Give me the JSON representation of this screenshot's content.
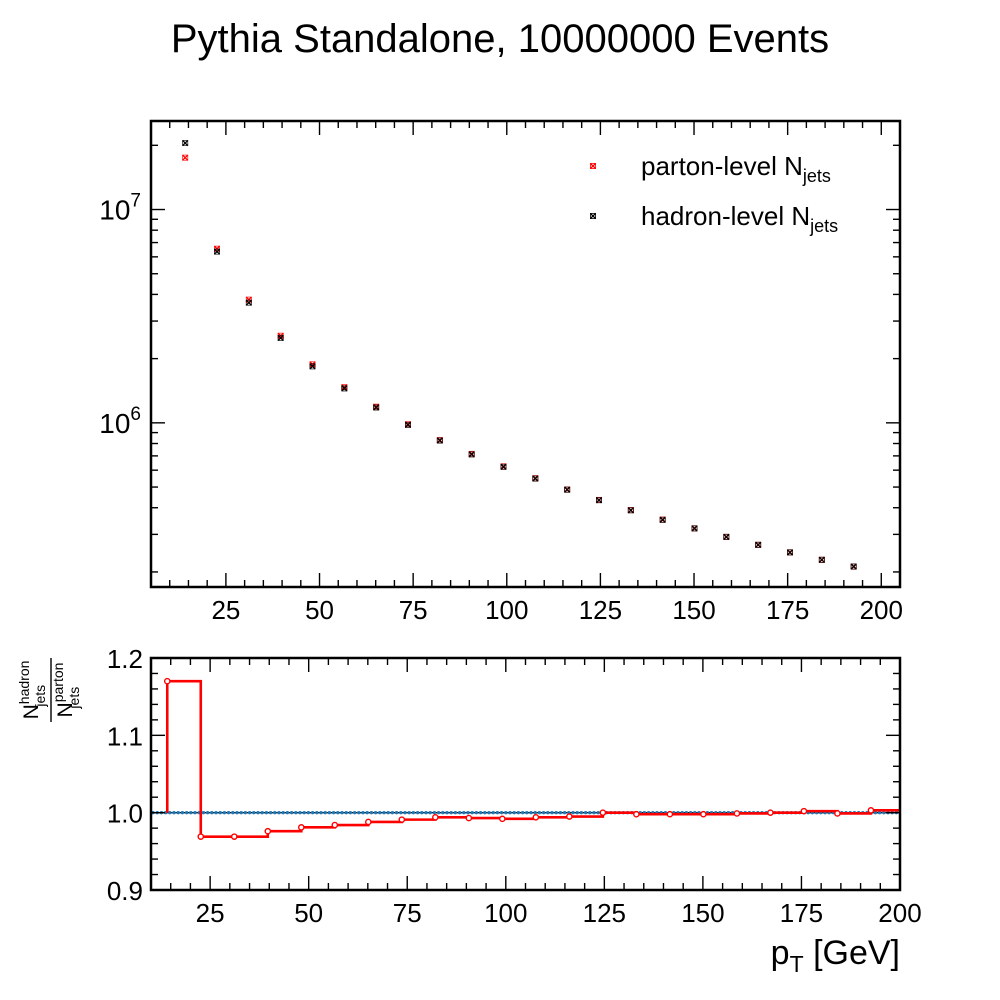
{
  "figure_title": "Pythia Standalone, 10000000 Events",
  "chart_data": [
    {
      "type": "scatter",
      "panel": "main",
      "yscale": "log",
      "xlim": [
        5,
        205
      ],
      "ylim": [
        170000,
        26000000
      ],
      "x_ticks": [
        "25",
        "50",
        "75",
        "100",
        "125",
        "150",
        "175",
        "200"
      ],
      "y_ticks": [
        {
          "base": "10",
          "exp": "6",
          "value": 1000000
        },
        {
          "base": "10",
          "exp": "7",
          "value": 10000000
        }
      ],
      "legend_position": "top-right",
      "x": [
        14.125,
        22.625,
        31.125,
        39.625,
        48.125,
        56.625,
        65.125,
        73.625,
        82.125,
        90.625,
        99.125,
        107.625,
        116.125,
        124.625,
        133.125,
        141.625,
        150.125,
        158.625,
        167.125,
        175.625,
        184.125,
        192.625
      ],
      "series": [
        {
          "name": "parton-level",
          "name_sub": "jets",
          "name_base": "N",
          "color": "#ff0000",
          "values": [
            17500000,
            6550000,
            3780000,
            2560000,
            1880000,
            1470000,
            1190000,
            985000,
            830000,
            715000,
            625000,
            550000,
            487000,
            435000,
            390000,
            352000,
            320000,
            292000,
            268000,
            247000,
            228000,
            212000
          ]
        },
        {
          "name": "hadron-level",
          "name_sub": "jets",
          "name_base": "N",
          "color": "#000000",
          "values": [
            20500000,
            6350000,
            3660000,
            2500000,
            1840000,
            1450000,
            1180000,
            978000,
            826000,
            711000,
            622000,
            548000,
            486000,
            434000,
            389000,
            351000,
            320000,
            292000,
            268000,
            247000,
            228000,
            212000
          ]
        }
      ]
    },
    {
      "type": "line",
      "panel": "ratio",
      "step": true,
      "xlim": [
        10,
        200
      ],
      "ylim": [
        0.9,
        1.2
      ],
      "x_ticks": [
        "25",
        "50",
        "75",
        "100",
        "125",
        "150",
        "175",
        "200"
      ],
      "y_ticks": [
        "0.9",
        "1.0",
        "1.1",
        "1.2"
      ],
      "xlabel_base": "p",
      "xlabel_sub": "T",
      "xlabel_unit": "[GeV]",
      "ylabel": {
        "num_base": "N",
        "num_sub": "jets",
        "num_sup": "hadron",
        "den_base": "N",
        "den_sub": "jets",
        "den_sup": "parton"
      },
      "reference_line": 1.0,
      "reference_color": "#1f77b4",
      "color": "#ff0000",
      "edges": [
        14.125,
        22.625,
        31.125,
        39.625,
        48.125,
        56.625,
        65.125,
        73.625,
        82.125,
        90.625,
        99.125,
        107.625,
        116.125,
        124.625,
        133.125,
        141.625,
        150.125,
        158.625,
        167.125,
        175.625,
        184.125,
        192.625,
        201.125
      ],
      "points_x": [
        14.125,
        22.625,
        31.125,
        39.625,
        48.125,
        56.625,
        65.125,
        73.625,
        82.125,
        90.625,
        99.125,
        107.625,
        116.125,
        124.625,
        133.125,
        141.625,
        150.125,
        158.625,
        167.125,
        175.625,
        184.125,
        192.625
      ],
      "values": [
        1.17,
        0.969,
        0.969,
        0.976,
        0.981,
        0.984,
        0.988,
        0.991,
        0.994,
        0.993,
        0.992,
        0.994,
        0.995,
        1.0,
        0.998,
        0.998,
        0.998,
        0.999,
        1.0,
        1.002,
        0.999,
        1.003
      ]
    }
  ]
}
